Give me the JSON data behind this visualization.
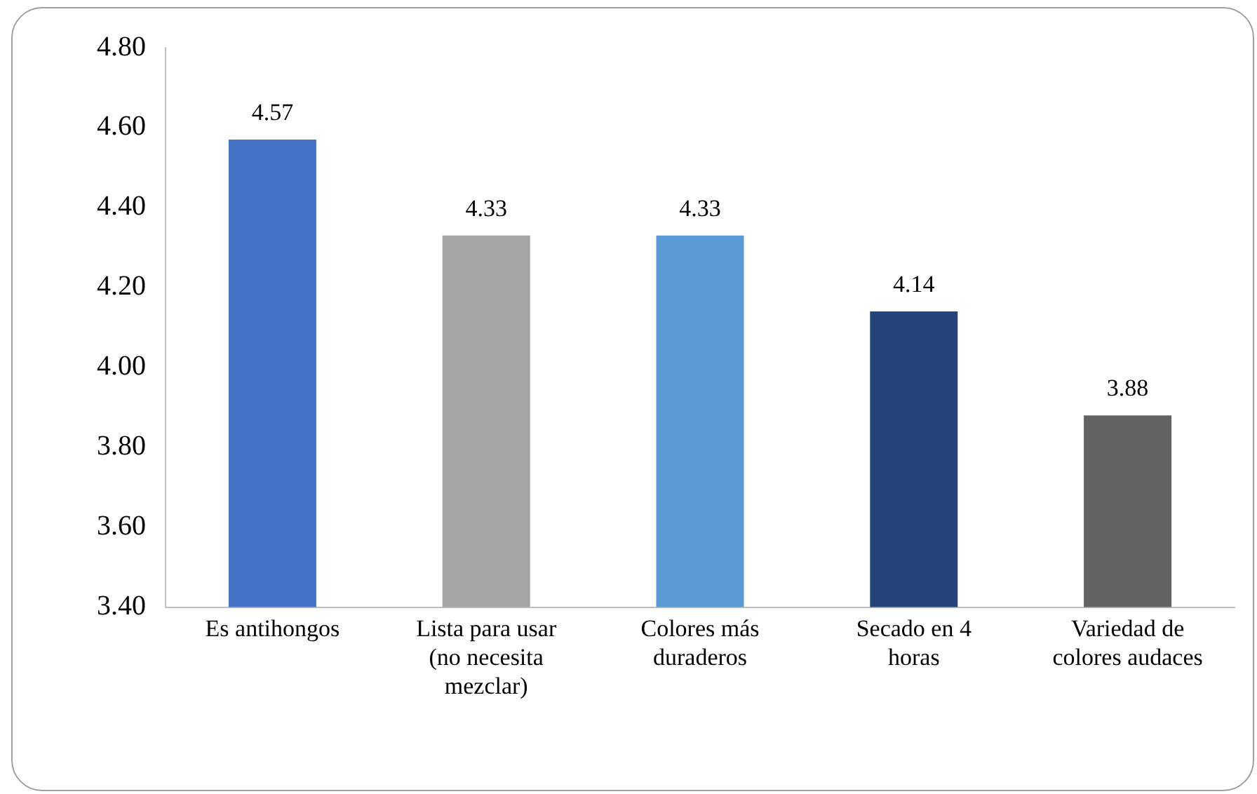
{
  "chart_data": {
    "type": "bar",
    "categories": [
      "Es antihongos",
      "Lista para usar (no necesita mezclar)",
      "Colores más duraderos",
      "Secado en 4 horas",
      "Variedad de colores audaces"
    ],
    "values": [
      4.57,
      4.33,
      4.33,
      4.14,
      3.88
    ],
    "colors": [
      "#4472c4",
      "#a5a5a5",
      "#5b9bd5",
      "#264478",
      "#636363"
    ],
    "ylim": [
      3.4,
      4.8
    ],
    "yticks": [
      {
        "value": 3.4,
        "label": "3.40"
      },
      {
        "value": 3.6,
        "label": "3.60"
      },
      {
        "value": 3.8,
        "label": "3.80"
      },
      {
        "value": 4.0,
        "label": "4.00"
      },
      {
        "value": 4.2,
        "label": "4.20"
      },
      {
        "value": 4.4,
        "label": "4.40"
      },
      {
        "value": 4.6,
        "label": "4.60"
      },
      {
        "value": 4.8,
        "label": "4.80"
      }
    ],
    "grid": false,
    "legend": false,
    "data_labels": true
  }
}
